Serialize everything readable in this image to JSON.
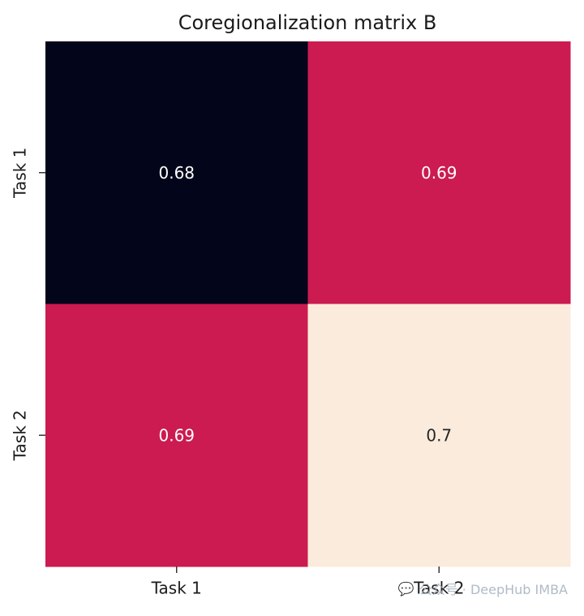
{
  "chart_data": {
    "type": "heatmap",
    "title": "Coregionalization matrix B",
    "x_labels": [
      "Task 1",
      "Task 2"
    ],
    "y_labels": [
      "Task 1",
      "Task 2"
    ],
    "values": [
      [
        0.68,
        0.69
      ],
      [
        0.69,
        0.7
      ]
    ],
    "value_labels": [
      [
        "0.68",
        "0.69"
      ],
      [
        "0.69",
        "0.7"
      ]
    ],
    "colormap": "rocket",
    "colorbar": false,
    "cell_colors": [
      [
        "#03051a",
        "#cb1b50"
      ],
      [
        "#cb1b50",
        "#faebdd"
      ]
    ],
    "annotation_colors": [
      [
        "#ffffff",
        "#ffffff"
      ],
      [
        "#ffffff",
        "#262626"
      ]
    ]
  },
  "watermark": {
    "text": "公众号 · DeepHub IMBA"
  }
}
